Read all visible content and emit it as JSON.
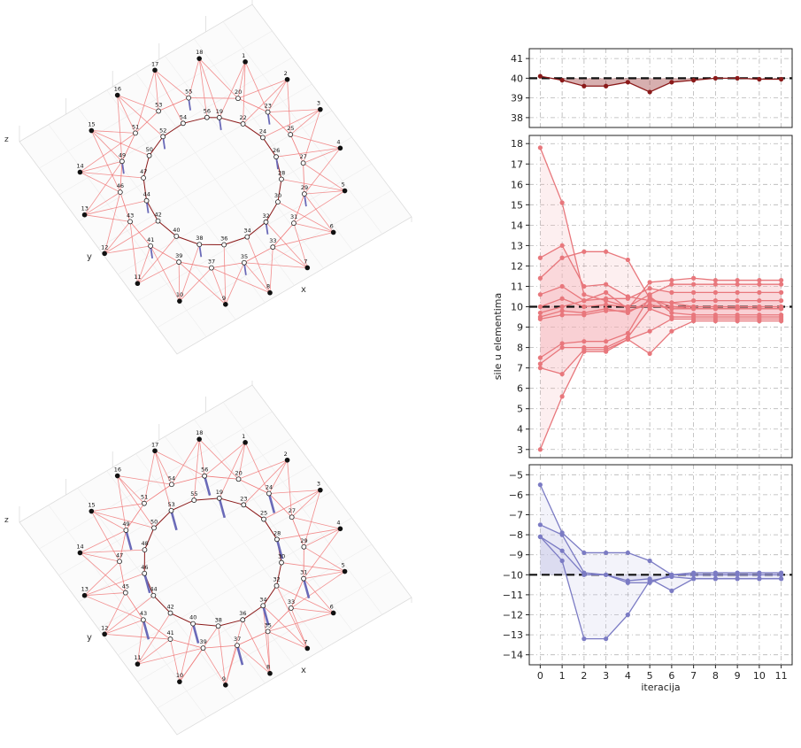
{
  "colors": {
    "red": "#e8777c",
    "red_fill": "#f6b8bb",
    "dark_red": "#8b1a1a",
    "blue": "#7b7bc4",
    "blue_fill": "#c8c8e8",
    "cable": "#f07a7a",
    "strut": "#6a6ab8",
    "ring": "#8b1a1a",
    "grid": "#b5b5b5"
  },
  "networks": [
    {
      "axis_labels": {
        "x": "x",
        "y": "y",
        "z": "z"
      },
      "nodes": [
        {
          "id": "1",
          "t": "fixed"
        },
        {
          "id": "2",
          "t": "fixed"
        },
        {
          "id": "3",
          "t": "fixed"
        },
        {
          "id": "4",
          "t": "fixed"
        },
        {
          "id": "5",
          "t": "fixed"
        },
        {
          "id": "6",
          "t": "fixed"
        },
        {
          "id": "7",
          "t": "fixed"
        },
        {
          "id": "8",
          "t": "fixed"
        },
        {
          "id": "9",
          "t": "fixed"
        },
        {
          "id": "10",
          "t": "fixed"
        },
        {
          "id": "11",
          "t": "fixed"
        },
        {
          "id": "12",
          "t": "fixed"
        },
        {
          "id": "13",
          "t": "fixed"
        },
        {
          "id": "14",
          "t": "fixed"
        },
        {
          "id": "15",
          "t": "fixed"
        },
        {
          "id": "16",
          "t": "fixed"
        },
        {
          "id": "17",
          "t": "fixed"
        },
        {
          "id": "18",
          "t": "fixed"
        },
        {
          "id": "19",
          "t": "free"
        },
        {
          "id": "20",
          "t": "free"
        },
        {
          "id": "22",
          "t": "free"
        },
        {
          "id": "23",
          "t": "free"
        },
        {
          "id": "24",
          "t": "free"
        },
        {
          "id": "25",
          "t": "free"
        },
        {
          "id": "26",
          "t": "free"
        },
        {
          "id": "27",
          "t": "free"
        },
        {
          "id": "28",
          "t": "free"
        },
        {
          "id": "29",
          "t": "free"
        },
        {
          "id": "30",
          "t": "free"
        },
        {
          "id": "31",
          "t": "free"
        },
        {
          "id": "32",
          "t": "free"
        },
        {
          "id": "33",
          "t": "free"
        },
        {
          "id": "34",
          "t": "free"
        },
        {
          "id": "35",
          "t": "free"
        },
        {
          "id": "36",
          "t": "free"
        },
        {
          "id": "37",
          "t": "free"
        },
        {
          "id": "38",
          "t": "free"
        },
        {
          "id": "39",
          "t": "free"
        },
        {
          "id": "40",
          "t": "free"
        },
        {
          "id": "41",
          "t": "free"
        },
        {
          "id": "42",
          "t": "free"
        },
        {
          "id": "43",
          "t": "free"
        },
        {
          "id": "44",
          "t": "free"
        },
        {
          "id": "46",
          "t": "free"
        },
        {
          "id": "47",
          "t": "free"
        },
        {
          "id": "49",
          "t": "free"
        },
        {
          "id": "50",
          "t": "free"
        },
        {
          "id": "51",
          "t": "free"
        },
        {
          "id": "52",
          "t": "free"
        },
        {
          "id": "53",
          "t": "free"
        },
        {
          "id": "54",
          "t": "free"
        },
        {
          "id": "55",
          "t": "free"
        },
        {
          "id": "56",
          "t": "free"
        }
      ]
    },
    {
      "axis_labels": {
        "x": "x",
        "y": "y",
        "z": "z"
      },
      "nodes": [
        {
          "id": "1",
          "t": "fixed"
        },
        {
          "id": "2",
          "t": "fixed"
        },
        {
          "id": "3",
          "t": "fixed"
        },
        {
          "id": "4",
          "t": "fixed"
        },
        {
          "id": "5",
          "t": "fixed"
        },
        {
          "id": "6",
          "t": "fixed"
        },
        {
          "id": "7",
          "t": "fixed"
        },
        {
          "id": "8",
          "t": "fixed"
        },
        {
          "id": "9",
          "t": "fixed"
        },
        {
          "id": "10",
          "t": "fixed"
        },
        {
          "id": "11",
          "t": "fixed"
        },
        {
          "id": "12",
          "t": "fixed"
        },
        {
          "id": "13",
          "t": "fixed"
        },
        {
          "id": "14",
          "t": "fixed"
        },
        {
          "id": "15",
          "t": "fixed"
        },
        {
          "id": "16",
          "t": "fixed"
        },
        {
          "id": "17",
          "t": "fixed"
        },
        {
          "id": "18",
          "t": "fixed"
        },
        {
          "id": "19",
          "t": "free"
        },
        {
          "id": "20",
          "t": "free"
        },
        {
          "id": "23",
          "t": "free"
        },
        {
          "id": "24",
          "t": "free"
        },
        {
          "id": "25",
          "t": "free"
        },
        {
          "id": "27",
          "t": "free"
        },
        {
          "id": "28",
          "t": "free"
        },
        {
          "id": "29",
          "t": "free"
        },
        {
          "id": "30",
          "t": "free"
        },
        {
          "id": "31",
          "t": "free"
        },
        {
          "id": "32",
          "t": "free"
        },
        {
          "id": "33",
          "t": "free"
        },
        {
          "id": "34",
          "t": "free"
        },
        {
          "id": "35",
          "t": "free"
        },
        {
          "id": "36",
          "t": "free"
        },
        {
          "id": "37",
          "t": "free"
        },
        {
          "id": "38",
          "t": "free"
        },
        {
          "id": "39",
          "t": "free"
        },
        {
          "id": "40",
          "t": "free"
        },
        {
          "id": "41",
          "t": "free"
        },
        {
          "id": "42",
          "t": "free"
        },
        {
          "id": "43",
          "t": "free"
        },
        {
          "id": "44",
          "t": "free"
        },
        {
          "id": "45",
          "t": "free"
        },
        {
          "id": "46",
          "t": "free"
        },
        {
          "id": "47",
          "t": "free"
        },
        {
          "id": "48",
          "t": "free"
        },
        {
          "id": "49",
          "t": "free"
        },
        {
          "id": "50",
          "t": "free"
        },
        {
          "id": "51",
          "t": "free"
        },
        {
          "id": "53",
          "t": "free"
        },
        {
          "id": "54",
          "t": "free"
        },
        {
          "id": "55",
          "t": "free"
        },
        {
          "id": "56",
          "t": "free"
        }
      ]
    }
  ],
  "chart_data": {
    "type": "line",
    "xlabel": "iteracija",
    "ylabel": "sile u elementima",
    "x": [
      0,
      1,
      2,
      3,
      4,
      5,
      6,
      7,
      8,
      9,
      10,
      11
    ],
    "panels": [
      {
        "ylim": [
          37.5,
          41.5
        ],
        "yticks": [
          38,
          39,
          40,
          41
        ],
        "target": 40,
        "color": "dark_red",
        "fill": "dark_red",
        "series": [
          {
            "values": [
              40.1,
              39.9,
              39.6,
              39.6,
              39.8,
              39.3,
              39.8,
              39.9,
              40.0,
              40.0,
              39.95,
              39.95
            ]
          }
        ]
      },
      {
        "ylim": [
          2.6,
          18.4
        ],
        "yticks": [
          3,
          4,
          5,
          6,
          7,
          8,
          9,
          10,
          11,
          12,
          13,
          14,
          15,
          16,
          17,
          18
        ],
        "target": 10,
        "color": "red",
        "fill": "red_fill",
        "series": [
          {
            "values": [
              17.8,
              15.1,
              10.6,
              10.3,
              10.0,
              10.0,
              10.0,
              10.0,
              10.0,
              10.0,
              10.0,
              10.0
            ]
          },
          {
            "values": [
              12.4,
              13.0,
              11.0,
              11.1,
              10.5,
              10.3,
              10.2,
              10.0,
              10.0,
              10.0,
              10.0,
              10.0
            ]
          },
          {
            "values": [
              11.4,
              12.4,
              12.7,
              12.7,
              12.3,
              10.4,
              10.0,
              9.9,
              9.9,
              9.9,
              9.9,
              9.9
            ]
          },
          {
            "values": [
              10.6,
              11.0,
              10.3,
              10.7,
              9.9,
              11.2,
              11.3,
              11.4,
              11.3,
              11.3,
              11.3,
              11.3
            ]
          },
          {
            "values": [
              10.0,
              10.4,
              10.0,
              10.1,
              10.0,
              10.6,
              11.1,
              11.1,
              11.1,
              11.1,
              11.1,
              11.1
            ]
          },
          {
            "values": [
              9.7,
              10.0,
              10.3,
              10.4,
              10.4,
              10.9,
              10.7,
              10.7,
              10.7,
              10.7,
              10.7,
              10.7
            ]
          },
          {
            "values": [
              9.5,
              9.8,
              9.7,
              9.9,
              9.7,
              10.3,
              10.2,
              10.3,
              10.3,
              10.3,
              10.3,
              10.3
            ]
          },
          {
            "values": [
              9.4,
              9.6,
              9.6,
              9.8,
              9.8,
              10.1,
              9.9,
              9.9,
              9.9,
              9.9,
              9.9,
              9.9
            ]
          },
          {
            "values": [
              7.5,
              8.2,
              8.3,
              8.3,
              8.7,
              10.5,
              9.7,
              9.6,
              9.6,
              9.6,
              9.6,
              9.6
            ]
          },
          {
            "values": [
              7.2,
              8.0,
              8.0,
              8.0,
              8.5,
              9.9,
              9.5,
              9.5,
              9.5,
              9.5,
              9.5,
              9.5
            ]
          },
          {
            "values": [
              7.0,
              6.7,
              7.9,
              7.9,
              8.4,
              8.8,
              9.4,
              9.4,
              9.4,
              9.4,
              9.4,
              9.4
            ]
          },
          {
            "values": [
              3.0,
              5.6,
              7.8,
              7.8,
              8.4,
              7.7,
              8.8,
              9.3,
              9.3,
              9.3,
              9.3,
              9.3
            ]
          }
        ]
      },
      {
        "ylim": [
          -14.5,
          -4.5
        ],
        "yticks": [
          -5,
          -6,
          -7,
          -8,
          -9,
          -10,
          -11,
          -12,
          -13,
          -14
        ],
        "target": -10,
        "color": "blue",
        "fill": "blue_fill",
        "series": [
          {
            "values": [
              -5.5,
              -7.9,
              -8.9,
              -8.9,
              -8.9,
              -9.3,
              -10.0,
              -10.0,
              -10.0,
              -10.0,
              -10.0,
              -10.0
            ]
          },
          {
            "values": [
              -7.5,
              -8.0,
              -9.9,
              -10.0,
              -10.4,
              -10.4,
              -10.0,
              -9.9,
              -9.9,
              -9.9,
              -9.9,
              -9.9
            ]
          },
          {
            "values": [
              -8.1,
              -8.8,
              -10.0,
              -10.0,
              -10.3,
              -10.2,
              -10.8,
              -10.2,
              -10.2,
              -10.2,
              -10.2,
              -10.2
            ]
          },
          {
            "values": [
              -8.1,
              -9.3,
              -13.2,
              -13.2,
              -12.0,
              -10.3,
              -10.1,
              -10.2,
              -10.2,
              -10.2,
              -10.2,
              -10.2
            ]
          }
        ]
      }
    ]
  }
}
